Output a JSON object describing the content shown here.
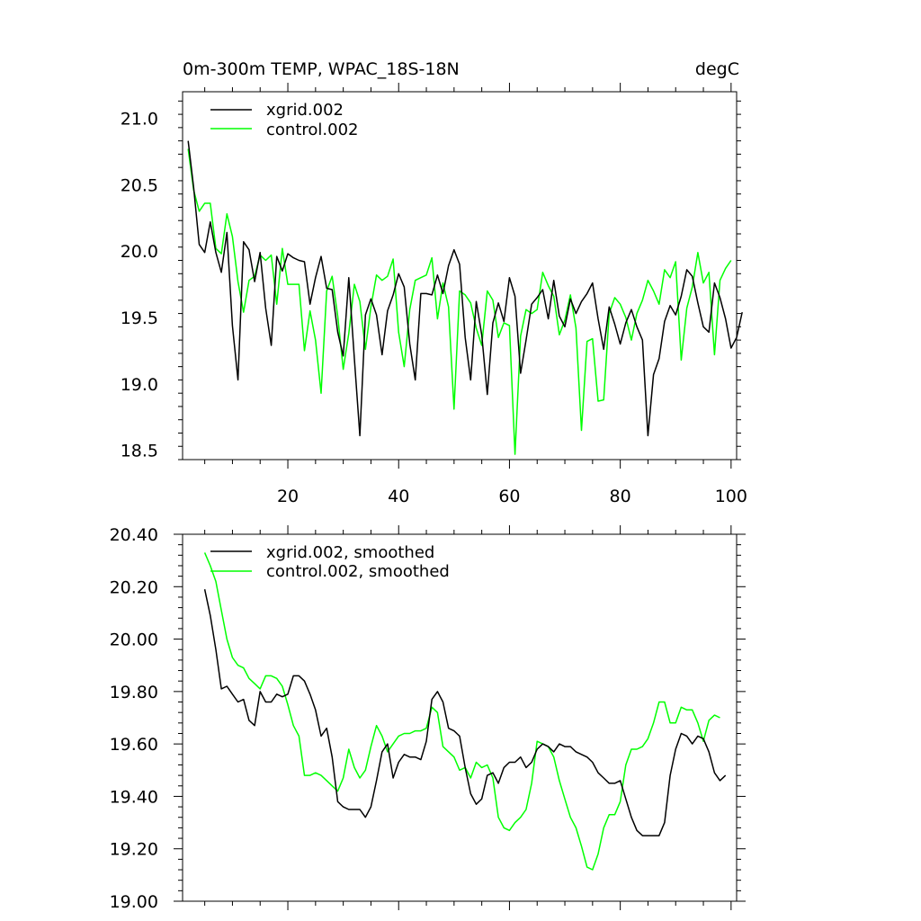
{
  "chart_data": [
    {
      "type": "line",
      "title": "0m-300m TEMP, WPAC_18S-18N",
      "units": "degC",
      "xlim": [
        1,
        101
      ],
      "ylim": [
        18.43,
        21.2
      ],
      "xticks": [
        20,
        40,
        60,
        80,
        100
      ],
      "xtick_labels": [
        "20",
        "40",
        "60",
        "80",
        "100"
      ],
      "yticks": [
        18.5,
        19.0,
        19.5,
        20.0,
        20.5,
        21.0
      ],
      "ytick_labels": [
        "18.5",
        "19.0",
        "19.5",
        "20.0",
        "20.5",
        "21.0"
      ],
      "grid": false,
      "legend_position": "top-left",
      "series": [
        {
          "name": "xgrid.002",
          "color": "#000000",
          "x_start": 2,
          "values": [
            20.83,
            20.48,
            20.05,
            19.99,
            20.22,
            19.99,
            19.84,
            20.14,
            19.44,
            19.03,
            20.07,
            20.01,
            19.77,
            19.99,
            19.57,
            19.29,
            19.96,
            19.85,
            19.98,
            19.95,
            19.93,
            19.92,
            19.6,
            19.8,
            19.96,
            19.72,
            19.71,
            19.39,
            19.21,
            19.8,
            19.19,
            18.61,
            19.52,
            19.64,
            19.52,
            19.22,
            19.55,
            19.67,
            19.83,
            19.73,
            19.3,
            19.03,
            19.68,
            19.68,
            19.67,
            19.82,
            19.68,
            19.89,
            20.01,
            19.9,
            19.35,
            19.03,
            19.62,
            19.37,
            18.92,
            19.46,
            19.61,
            19.47,
            19.8,
            19.66,
            19.08,
            19.33,
            19.6,
            19.65,
            19.71,
            19.49,
            19.78,
            19.51,
            19.43,
            19.64,
            19.53,
            19.62,
            19.68,
            19.76,
            19.49,
            19.26,
            19.58,
            19.45,
            19.3,
            19.46,
            19.56,
            19.43,
            19.33,
            18.61,
            19.07,
            19.19,
            19.47,
            19.59,
            19.52,
            19.66,
            19.86,
            19.81,
            19.61,
            19.43,
            19.39,
            19.76,
            19.65,
            19.49,
            19.27,
            19.35,
            19.54
          ]
        },
        {
          "name": "control.002",
          "color": "#00ff00",
          "x_start": 2,
          "values": [
            20.77,
            20.46,
            20.3,
            20.36,
            20.36,
            20.02,
            19.98,
            20.28,
            20.11,
            19.77,
            19.54,
            19.78,
            19.81,
            19.97,
            19.93,
            19.97,
            19.6,
            20.02,
            19.75,
            19.75,
            19.75,
            19.25,
            19.55,
            19.33,
            18.93,
            19.7,
            19.81,
            19.51,
            19.11,
            19.38,
            19.75,
            19.62,
            19.26,
            19.58,
            19.82,
            19.78,
            19.81,
            19.94,
            19.39,
            19.13,
            19.56,
            19.78,
            19.8,
            19.82,
            19.95,
            19.49,
            19.76,
            19.58,
            18.81,
            19.7,
            19.67,
            19.61,
            19.42,
            19.29,
            19.7,
            19.63,
            19.35,
            19.46,
            19.44,
            18.47,
            19.36,
            19.56,
            19.53,
            19.56,
            19.84,
            19.74,
            19.66,
            19.37,
            19.48,
            19.67,
            19.42,
            18.65,
            19.32,
            19.34,
            18.87,
            18.88,
            19.53,
            19.65,
            19.6,
            19.5,
            19.33,
            19.53,
            19.63,
            19.78,
            19.7,
            19.6,
            19.86,
            19.8,
            19.92,
            19.18,
            19.57,
            19.73,
            19.99,
            19.76,
            19.84,
            19.22,
            19.78,
            19.87,
            19.93
          ]
        }
      ]
    },
    {
      "type": "line",
      "xlim": [
        1,
        101
      ],
      "ylim": [
        19.0,
        20.4
      ],
      "xticks": [
        20,
        40,
        60,
        80,
        100
      ],
      "yticks": [
        19.0,
        19.2,
        19.4,
        19.6,
        19.8,
        20.0,
        20.2,
        20.4
      ],
      "ytick_labels": [
        "19.00",
        "19.20",
        "19.40",
        "19.60",
        "19.80",
        "20.00",
        "20.20",
        "20.40"
      ],
      "grid": false,
      "legend_position": "top-left",
      "series": [
        {
          "name": "xgrid.002, smoothed",
          "color": "#000000",
          "x_start": 5,
          "values": [
            20.19,
            20.09,
            19.96,
            19.81,
            19.82,
            19.79,
            19.76,
            19.77,
            19.69,
            19.67,
            19.8,
            19.76,
            19.76,
            19.79,
            19.78,
            19.79,
            19.86,
            19.86,
            19.84,
            19.79,
            19.73,
            19.63,
            19.66,
            19.55,
            19.38,
            19.36,
            19.35,
            19.35,
            19.35,
            19.32,
            19.36,
            19.46,
            19.57,
            19.6,
            19.47,
            19.53,
            19.56,
            19.55,
            19.55,
            19.54,
            19.61,
            19.77,
            19.8,
            19.76,
            19.66,
            19.65,
            19.63,
            19.51,
            19.41,
            19.37,
            19.39,
            19.48,
            19.49,
            19.45,
            19.51,
            19.53,
            19.53,
            19.55,
            19.51,
            19.53,
            19.58,
            19.6,
            19.59,
            19.57,
            19.6,
            19.59,
            19.59,
            19.57,
            19.56,
            19.55,
            19.53,
            19.49,
            19.47,
            19.45,
            19.45,
            19.46,
            19.39,
            19.32,
            19.27,
            19.25,
            19.25,
            19.25,
            19.25,
            19.3,
            19.48,
            19.58,
            19.64,
            19.63,
            19.6,
            19.63,
            19.62,
            19.57,
            19.49,
            19.46,
            19.48
          ]
        },
        {
          "name": "control.002, smoothed",
          "color": "#00ff00",
          "x_start": 5,
          "values": [
            20.33,
            20.28,
            20.22,
            20.11,
            20.0,
            19.93,
            19.9,
            19.89,
            19.85,
            19.83,
            19.81,
            19.86,
            19.86,
            19.85,
            19.82,
            19.75,
            19.67,
            19.63,
            19.48,
            19.48,
            19.49,
            19.48,
            19.46,
            19.44,
            19.42,
            19.47,
            19.58,
            19.51,
            19.47,
            19.5,
            19.59,
            19.67,
            19.63,
            19.57,
            19.6,
            19.63,
            19.64,
            19.64,
            19.65,
            19.65,
            19.66,
            19.74,
            19.72,
            19.59,
            19.57,
            19.55,
            19.5,
            19.51,
            19.47,
            19.53,
            19.51,
            19.52,
            19.47,
            19.32,
            19.28,
            19.27,
            19.3,
            19.32,
            19.35,
            19.45,
            19.61,
            19.6,
            19.59,
            19.55,
            19.46,
            19.39,
            19.32,
            19.28,
            19.21,
            19.13,
            19.12,
            19.18,
            19.28,
            19.33,
            19.33,
            19.38,
            19.52,
            19.58,
            19.58,
            19.59,
            19.62,
            19.68,
            19.76,
            19.76,
            19.68,
            19.68,
            19.74,
            19.73,
            19.73,
            19.68,
            19.61,
            19.69,
            19.71,
            19.7
          ]
        }
      ]
    }
  ]
}
